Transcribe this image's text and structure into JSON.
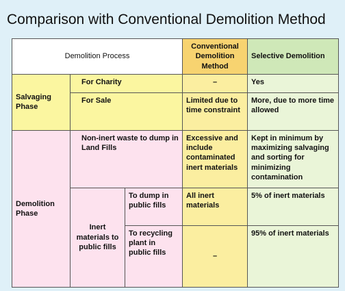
{
  "title": "Comparison with Conventional Demolition Method",
  "header": {
    "process": "Demolition Process",
    "conventional": "Conventional Demolition Method",
    "selective": "Selective Demolition"
  },
  "salvaging": {
    "phase": "Salvaging Phase",
    "charity": {
      "label": "For Charity",
      "conventional": "–",
      "selective": "Yes"
    },
    "sale": {
      "label": "For Sale",
      "conventional": "Limited due to time constraint",
      "selective": "More, due to more time allowed"
    }
  },
  "demolition": {
    "phase": "Demolition Phase",
    "non_inert": {
      "label": "Non-inert waste to dump in Land Fills",
      "conventional": "Excessive and include contaminated inert materials",
      "selective": "Kept in minimum by maximizing salvaging and sorting for minimizing contamination"
    },
    "inert": {
      "label": "Inert materials to public fills",
      "dump": {
        "label": "To dump in public fills",
        "conventional": "All inert materials",
        "selective": "5% of inert materials"
      },
      "recycle": {
        "label": "To recycling plant in public fills",
        "conventional": "–",
        "selective": "95% of inert materials"
      }
    }
  }
}
